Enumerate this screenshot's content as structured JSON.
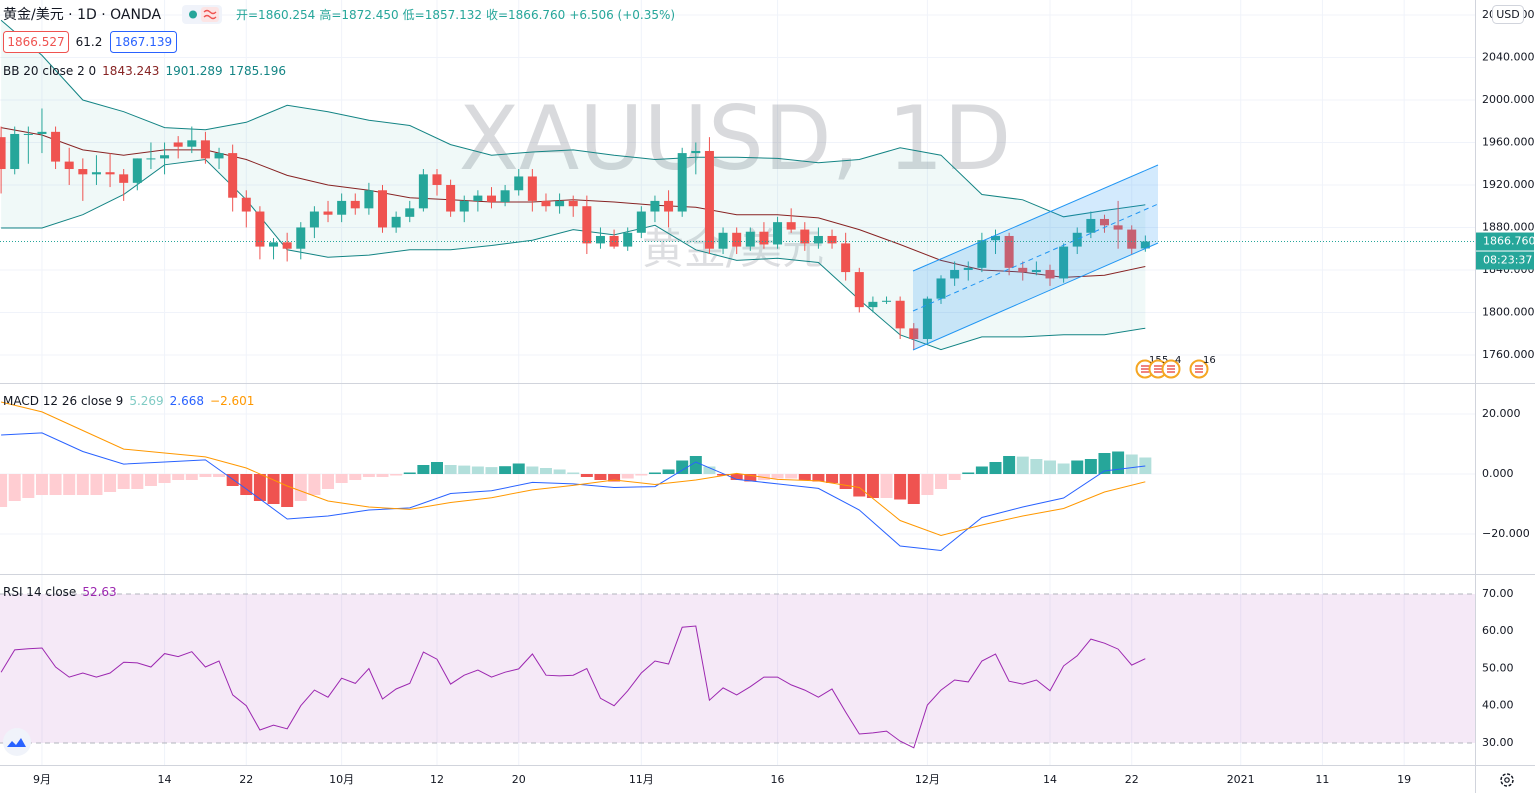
{
  "header": {
    "symbol": "黄金/美元 · 1D · OANDA",
    "ohlc": [
      "开=1860.254",
      "高=1872.450",
      "低=1857.132",
      "收=1866.760"
    ],
    "change": "+6.506 (+0.35%)",
    "quote": [
      1866.527,
      61.2,
      1867.139
    ],
    "currency": "USD",
    "last_price_label": "1866.760",
    "countdown": "08:23:37",
    "events": [
      15,
      5,
      4,
      16
    ]
  },
  "chart_data": [
    {
      "type": "candlestick",
      "watermark": "XAUUSD, 1D",
      "watermark_sub": "黄金/美元",
      "up_color": "#26a69a",
      "down_color": "#ef5350",
      "xlim": [
        -3.08,
        105.2
      ],
      "xticks": [
        {
          "value": 0,
          "label": "9月"
        },
        14,
        22,
        {
          "value": 22,
          "label": "10月"
        },
        12,
        20,
        {
          "value": 44,
          "label": "11月"
        },
        16,
        {
          "value": 65,
          "label": "12月"
        },
        14,
        22,
        {
          "value": 88,
          "label": "2021"
        },
        11,
        19
      ],
      "xtick_values": [
        0,
        9,
        15,
        22,
        29,
        35,
        44,
        54,
        65,
        74,
        80,
        88,
        94,
        100
      ],
      "ylim": [
        1733.6,
        2094.1
      ],
      "yticks": [
        {
          "value": 1760,
          "label": "1760.000"
        },
        {
          "value": 1800,
          "label": "1800.000"
        },
        {
          "value": 1840,
          "label": "1840.000"
        },
        {
          "value": 1880,
          "label": "1880.000"
        },
        {
          "value": 1920,
          "label": "1920.000"
        },
        {
          "value": 1960,
          "label": "1960.000"
        },
        {
          "value": 2000,
          "label": "2000.000"
        },
        {
          "value": 2040,
          "label": "2040.000"
        },
        {
          "value": 2080,
          "label": "2080.000"
        }
      ],
      "x": [
        -3,
        -2,
        -1,
        0,
        1,
        2,
        3,
        4,
        5,
        6,
        7,
        8,
        9,
        10,
        11,
        12,
        13,
        14,
        15,
        16,
        17,
        18,
        19,
        20,
        21,
        22,
        23,
        24,
        25,
        26,
        27,
        28,
        29,
        30,
        31,
        32,
        33,
        34,
        35,
        36,
        37,
        38,
        39,
        40,
        41,
        42,
        43,
        44,
        45,
        46,
        47,
        48,
        49,
        50,
        51,
        52,
        53,
        54,
        55,
        56,
        57,
        58,
        59,
        60,
        61,
        62,
        63,
        64,
        65,
        66,
        67,
        68,
        69,
        70,
        71,
        72,
        73,
        74,
        75,
        76,
        77,
        78,
        79,
        80,
        81
      ],
      "ohlc": [
        [
          1965,
          1975,
          1912,
          1935
        ],
        [
          1935,
          1975,
          1930,
          1968
        ],
        [
          1968,
          1975,
          1940,
          1968
        ],
        [
          1968,
          1992,
          1950,
          1970
        ],
        [
          1970,
          1975,
          1935,
          1942
        ],
        [
          1942,
          1955,
          1920,
          1935
        ],
        [
          1935,
          1945,
          1905,
          1930
        ],
        [
          1930,
          1948,
          1920,
          1932
        ],
        [
          1932,
          1950,
          1918,
          1930
        ],
        [
          1930,
          1935,
          1905,
          1922
        ],
        [
          1922,
          1945,
          1915,
          1945
        ],
        [
          1945,
          1960,
          1935,
          1945
        ],
        [
          1945,
          1960,
          1930,
          1948
        ],
        [
          1960,
          1966,
          1945,
          1956
        ],
        [
          1956,
          1975,
          1950,
          1962
        ],
        [
          1962,
          1970,
          1940,
          1945
        ],
        [
          1945,
          1955,
          1935,
          1950
        ],
        [
          1950,
          1958,
          1895,
          1908
        ],
        [
          1908,
          1915,
          1880,
          1895
        ],
        [
          1895,
          1900,
          1850,
          1862
        ],
        [
          1862,
          1870,
          1850,
          1866
        ],
        [
          1866,
          1875,
          1848,
          1860
        ],
        [
          1860,
          1885,
          1850,
          1880
        ],
        [
          1880,
          1900,
          1870,
          1895
        ],
        [
          1895,
          1905,
          1885,
          1892
        ],
        [
          1892,
          1912,
          1885,
          1905
        ],
        [
          1905,
          1912,
          1892,
          1898
        ],
        [
          1898,
          1922,
          1892,
          1915
        ],
        [
          1915,
          1920,
          1875,
          1880
        ],
        [
          1880,
          1895,
          1875,
          1890
        ],
        [
          1890,
          1905,
          1885,
          1898
        ],
        [
          1898,
          1935,
          1895,
          1930
        ],
        [
          1930,
          1935,
          1910,
          1920
        ],
        [
          1920,
          1925,
          1890,
          1895
        ],
        [
          1895,
          1910,
          1885,
          1905
        ],
        [
          1905,
          1915,
          1895,
          1910
        ],
        [
          1910,
          1918,
          1898,
          1904
        ],
        [
          1904,
          1920,
          1900,
          1915
        ],
        [
          1915,
          1935,
          1910,
          1928
        ],
        [
          1928,
          1935,
          1895,
          1905
        ],
        [
          1905,
          1912,
          1895,
          1900
        ],
        [
          1900,
          1912,
          1893,
          1905
        ],
        [
          1905,
          1910,
          1890,
          1900
        ],
        [
          1900,
          1910,
          1855,
          1865
        ],
        [
          1865,
          1880,
          1860,
          1872
        ],
        [
          1872,
          1878,
          1860,
          1862
        ],
        [
          1862,
          1880,
          1858,
          1875
        ],
        [
          1875,
          1900,
          1870,
          1895
        ],
        [
          1895,
          1910,
          1885,
          1905
        ],
        [
          1905,
          1915,
          1880,
          1895
        ],
        [
          1895,
          1955,
          1890,
          1950
        ],
        [
          1950,
          1960,
          1930,
          1952
        ],
        [
          1952,
          1965,
          1855,
          1860
        ],
        [
          1860,
          1880,
          1855,
          1875
        ],
        [
          1875,
          1880,
          1855,
          1862
        ],
        [
          1862,
          1880,
          1858,
          1876
        ],
        [
          1876,
          1885,
          1860,
          1864
        ],
        [
          1864,
          1890,
          1860,
          1885
        ],
        [
          1885,
          1898,
          1875,
          1878
        ],
        [
          1878,
          1885,
          1858,
          1865
        ],
        [
          1865,
          1880,
          1860,
          1872
        ],
        [
          1872,
          1878,
          1860,
          1865
        ],
        [
          1865,
          1875,
          1830,
          1838
        ],
        [
          1838,
          1842,
          1800,
          1805
        ],
        [
          1805,
          1815,
          1800,
          1810
        ],
        [
          1810,
          1815,
          1808,
          1811
        ],
        [
          1811,
          1815,
          1775,
          1785
        ],
        [
          1785,
          1790,
          1765,
          1775
        ],
        [
          1775,
          1815,
          1770,
          1813
        ],
        [
          1813,
          1835,
          1808,
          1832
        ],
        [
          1832,
          1848,
          1825,
          1840
        ],
        [
          1840,
          1848,
          1830,
          1842
        ],
        [
          1842,
          1875,
          1838,
          1868
        ],
        [
          1868,
          1878,
          1855,
          1872
        ],
        [
          1872,
          1875,
          1835,
          1842
        ],
        [
          1842,
          1848,
          1830,
          1838
        ],
        [
          1838,
          1848,
          1835,
          1840
        ],
        [
          1840,
          1845,
          1825,
          1832
        ],
        [
          1832,
          1865,
          1828,
          1862
        ],
        [
          1862,
          1880,
          1855,
          1875
        ],
        [
          1875,
          1895,
          1870,
          1888
        ],
        [
          1888,
          1892,
          1875,
          1882
        ],
        [
          1882,
          1905,
          1860,
          1878
        ],
        [
          1878,
          1882,
          1855,
          1860
        ],
        [
          1860.254,
          1872.45,
          1857.132,
          1866.76
        ]
      ],
      "bands": {
        "name": "BB 20 close 2 0",
        "legend_values": [
          1843.243,
          1901.289,
          1785.196
        ],
        "basis_color": "#872323",
        "band_color": "#138484",
        "fill": "rgba(38,166,154,0.07)",
        "x": [
          -3,
          0,
          3,
          6,
          9,
          12,
          15,
          18,
          21,
          24,
          27,
          30,
          33,
          36,
          39,
          42,
          45,
          48,
          51,
          54,
          57,
          60,
          63,
          66,
          69,
          72,
          75,
          78,
          81
        ],
        "upper": [
          2075,
          2042,
          2000,
          1989,
          1974,
          1972,
          1979,
          1995,
          1989,
          1981,
          1976,
          1958,
          1948,
          1951,
          1953,
          1948,
          1944,
          1946,
          1946,
          1945,
          1941,
          1944,
          1955,
          1948,
          1911,
          1906,
          1890,
          1896,
          1901.289
        ],
        "basis": [
          1974,
          1967,
          1953,
          1948,
          1953,
          1953,
          1944,
          1929,
          1920,
          1915,
          1908,
          1906,
          1904,
          1904,
          1906,
          1904,
          1901,
          1899,
          1892,
          1892,
          1889,
          1878,
          1864,
          1849,
          1840,
          1838,
          1833,
          1835,
          1843.243
        ],
        "lower": [
          1879.5,
          1879.5,
          1892,
          1911,
          1939,
          1944,
          1906,
          1859,
          1852,
          1854,
          1859,
          1859,
          1863,
          1868,
          1878,
          1873,
          1882,
          1859,
          1849,
          1851,
          1847,
          1812,
          1779,
          1765,
          1777,
          1777,
          1779,
          1779,
          1785.196
        ]
      }
    },
    {
      "type": "macd",
      "name": "MACD 12 26 close 9",
      "legend_values": [
        5.269,
        2.668,
        "−2.601"
      ],
      "ylim": [
        -33.33,
        30.33
      ],
      "yticks": [
        {
          "value": -20,
          "label": "−20.000"
        },
        {
          "value": 0,
          "label": "0.000"
        },
        {
          "value": 20,
          "label": "20.000"
        }
      ],
      "colors": {
        "grow_above": "#26a69a",
        "fall_above": "#b2dfdb",
        "grow_below": "#ffcdd2",
        "fall_below": "#ef5350",
        "macd": "#2962ff",
        "signal": "#ff9800"
      },
      "hist": [
        -11,
        -9,
        -8,
        -7,
        -7,
        -7,
        -7,
        -7,
        -6,
        -5,
        -5,
        -4,
        -3,
        -2,
        -2,
        -1,
        -1,
        -4,
        -7,
        -9,
        -10,
        -11,
        -9,
        -7,
        -5,
        -3,
        -2,
        -1,
        -1,
        -0.5,
        0.5,
        3,
        4,
        3,
        2.8,
        2.5,
        2.3,
        2.6,
        3.5,
        2.5,
        2,
        1.5,
        0.5,
        -1,
        -2,
        -2.5,
        -1.5,
        -0.5,
        0.5,
        1.5,
        4.5,
        6,
        2.5,
        -0.5,
        -2,
        -2.5,
        -2,
        -1.5,
        -1.5,
        -2,
        -2.5,
        -3,
        -5,
        -7.5,
        -8,
        -8,
        -8.5,
        -10,
        -7,
        -5,
        -2,
        0.5,
        2.5,
        4,
        6,
        5.8,
        5,
        4.5,
        3.5,
        4.5,
        5,
        7,
        7.5,
        6.5,
        5.5
      ],
      "line_x": [
        -3,
        0,
        3,
        6,
        9,
        12,
        15,
        18,
        21,
        24,
        27,
        30,
        33,
        36,
        39,
        42,
        45,
        48,
        51,
        54,
        57,
        60,
        63,
        66,
        69,
        72,
        75,
        78,
        81
      ],
      "macd": [
        13,
        13.7,
        7.5,
        3.3,
        4,
        4.7,
        -5,
        -15,
        -14,
        -12,
        -11.3,
        -6.5,
        -5.6,
        -2.8,
        -3.3,
        -4.5,
        -4.2,
        4,
        -1.8,
        -3.3,
        -4.8,
        -12,
        -24,
        -25.5,
        -14.5,
        -11,
        -8,
        1,
        2.668
      ],
      "signal": [
        24,
        20.7,
        14.5,
        8.3,
        7,
        5.7,
        2,
        -4,
        -9,
        -11,
        -11.8,
        -9.5,
        -7.9,
        -5.3,
        -3.8,
        -2,
        -3.5,
        -2,
        0.2,
        -1.8,
        -2.3,
        -4.5,
        -15.5,
        -20.5,
        -17,
        -14,
        -11.5,
        -6,
        -2.601
      ]
    },
    {
      "type": "rsi",
      "name": "RSI 14 close",
      "legend_value": 52.63,
      "color": "#9c27b0",
      "band_fill": "rgba(156,39,176,0.1)",
      "ylim": [
        24.09,
        75.37
      ],
      "yticks": [
        {
          "value": 30,
          "label": "30.00"
        },
        {
          "value": 40,
          "label": "40.00"
        },
        {
          "value": 50,
          "label": "50.00"
        },
        {
          "value": 60,
          "label": "60.00"
        },
        {
          "value": 70,
          "label": "70.00"
        }
      ],
      "values": [
        49,
        55,
        55.3,
        55.5,
        50.4,
        47.7,
        48.8,
        47.7,
        48.8,
        51.7,
        51.5,
        50.4,
        54,
        53.2,
        54.5,
        50.4,
        52,
        42.9,
        40,
        33.5,
        34.8,
        33.8,
        40,
        44.2,
        42.3,
        47.4,
        46,
        50,
        41.8,
        44.5,
        46,
        54.4,
        52.5,
        45.8,
        48.2,
        49.6,
        47.7,
        49,
        49.9,
        53.9,
        48.2,
        48,
        48.2,
        50,
        42,
        40,
        44,
        48.8,
        52,
        51.2,
        61.1,
        61.4,
        41.5,
        44.8,
        42.9,
        45.1,
        47.7,
        47.7,
        45.6,
        44.2,
        42.3,
        44.5,
        38.3,
        32.4,
        32.7,
        33.2,
        30.5,
        28.7,
        40.2,
        44.2,
        46.9,
        46.4,
        52,
        53.9,
        46.6,
        45.8,
        46.9,
        44,
        50.7,
        53.4,
        57.9,
        56.8,
        55.2,
        50.9,
        52.63
      ]
    }
  ]
}
